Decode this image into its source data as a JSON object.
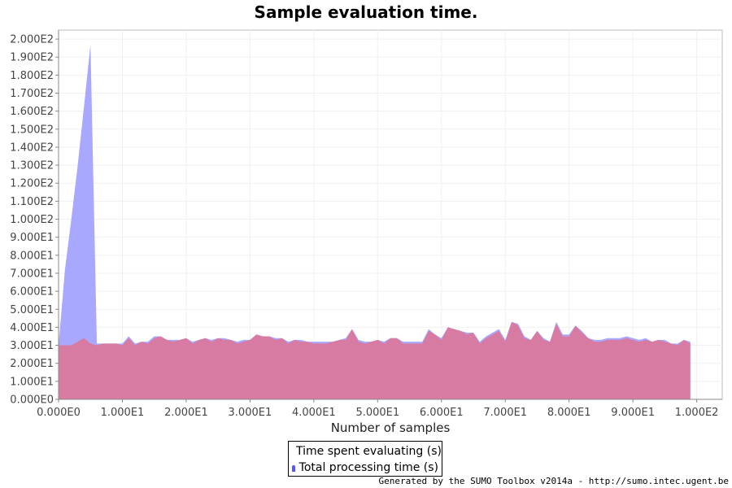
{
  "chart_data": {
    "type": "area",
    "title": "Sample evaluation time.",
    "xlabel": "Number of samples",
    "ylabel": "",
    "xlim": [
      0,
      104
    ],
    "ylim": [
      0,
      205
    ],
    "grid": true,
    "legend_position": "bottom",
    "x_ticks": [
      0,
      10,
      20,
      30,
      40,
      50,
      60,
      70,
      80,
      90,
      100
    ],
    "x_tick_labels": [
      "0.000E0",
      "1.000E1",
      "2.000E1",
      "3.000E1",
      "4.000E1",
      "5.000E1",
      "6.000E1",
      "7.000E1",
      "8.000E1",
      "9.000E1",
      "1.000E2"
    ],
    "y_ticks": [
      0,
      10,
      20,
      30,
      40,
      50,
      60,
      70,
      80,
      90,
      100,
      110,
      120,
      130,
      140,
      150,
      160,
      170,
      180,
      190,
      200
    ],
    "y_tick_labels": [
      "0.000E0",
      "1.000E1",
      "2.000E1",
      "3.000E1",
      "4.000E1",
      "5.000E1",
      "6.000E1",
      "7.000E1",
      "8.000E1",
      "9.000E1",
      "1.000E2",
      "1.100E2",
      "1.200E2",
      "1.300E2",
      "1.400E2",
      "1.500E2",
      "1.600E2",
      "1.700E2",
      "1.800E2",
      "1.900E2",
      "2.000E2"
    ],
    "series": [
      {
        "name": "Time spent evaluating (s)",
        "color": "#ff5555",
        "x": [
          0,
          1,
          2,
          3,
          4,
          5,
          6,
          7,
          8,
          9,
          10,
          11,
          12,
          13,
          14,
          15,
          16,
          17,
          18,
          19,
          20,
          21,
          22,
          23,
          24,
          25,
          26,
          27,
          28,
          29,
          30,
          31,
          32,
          33,
          34,
          35,
          36,
          37,
          38,
          39,
          40,
          41,
          42,
          43,
          44,
          45,
          46,
          47,
          48,
          49,
          50,
          51,
          52,
          53,
          54,
          55,
          56,
          57,
          58,
          59,
          60,
          61,
          62,
          63,
          64,
          65,
          66,
          67,
          68,
          69,
          70,
          71,
          72,
          73,
          74,
          75,
          76,
          77,
          78,
          79,
          80,
          81,
          82,
          83,
          84,
          85,
          86,
          87,
          88,
          89,
          90,
          91,
          92,
          93,
          94,
          95,
          96,
          97,
          98,
          99
        ],
        "values": [
          30,
          30,
          30,
          32,
          34,
          31,
          30,
          31,
          31,
          31,
          30,
          34,
          30,
          32,
          31,
          34,
          35,
          33,
          32,
          33,
          34,
          31,
          33,
          34,
          32,
          34,
          33,
          33,
          31,
          32,
          33,
          36,
          35,
          35,
          33,
          34,
          31,
          33,
          32,
          32,
          31,
          31,
          31,
          32,
          33,
          33,
          39,
          32,
          31,
          32,
          33,
          31,
          34,
          34,
          31,
          31,
          31,
          31,
          38,
          36,
          33,
          40,
          39,
          38,
          36,
          37,
          31,
          34,
          36,
          38,
          32,
          43,
          41,
          34,
          33,
          38,
          33,
          32,
          42,
          35,
          35,
          41,
          37,
          34,
          32,
          32,
          33,
          33,
          33,
          34,
          33,
          32,
          33,
          32,
          33,
          32,
          31,
          30,
          33,
          31
        ]
      },
      {
        "name": "Total processing time (s)",
        "color": "#5555ff",
        "x": [
          0,
          1,
          2,
          3,
          4,
          5,
          6,
          7,
          8,
          9,
          10,
          11,
          12,
          13,
          14,
          15,
          16,
          17,
          18,
          19,
          20,
          21,
          22,
          23,
          24,
          25,
          26,
          27,
          28,
          29,
          30,
          31,
          32,
          33,
          34,
          35,
          36,
          37,
          38,
          39,
          40,
          41,
          42,
          43,
          44,
          45,
          46,
          47,
          48,
          49,
          50,
          51,
          52,
          53,
          54,
          55,
          56,
          57,
          58,
          59,
          60,
          61,
          62,
          63,
          64,
          65,
          66,
          67,
          68,
          69,
          70,
          71,
          72,
          73,
          74,
          75,
          76,
          77,
          78,
          79,
          80,
          81,
          82,
          83,
          84,
          85,
          86,
          87,
          88,
          89,
          90,
          91,
          92,
          93,
          94,
          95,
          96,
          97,
          98,
          99
        ],
        "values": [
          30,
          72,
          100,
          130,
          163,
          197,
          31,
          31,
          31,
          31,
          31,
          35,
          31,
          32,
          32,
          35,
          35,
          33,
          33,
          33,
          34,
          32,
          33,
          34,
          33,
          34,
          34,
          33,
          32,
          33,
          33,
          36,
          35,
          35,
          34,
          34,
          32,
          33,
          33,
          32,
          32,
          32,
          32,
          32,
          33,
          34,
          39,
          33,
          32,
          32,
          33,
          32,
          34,
          34,
          32,
          32,
          32,
          32,
          39,
          36,
          34,
          40,
          39,
          38,
          37,
          37,
          32,
          35,
          37,
          39,
          33,
          43,
          42,
          35,
          33,
          38,
          34,
          32,
          43,
          36,
          36,
          41,
          38,
          34,
          33,
          33,
          34,
          34,
          34,
          35,
          34,
          33,
          34,
          32,
          33,
          33,
          31,
          31,
          33,
          32
        ]
      }
    ]
  },
  "footer": "Generated by the SUMO Toolbox v2014a - http://sumo.intec.ugent.be"
}
